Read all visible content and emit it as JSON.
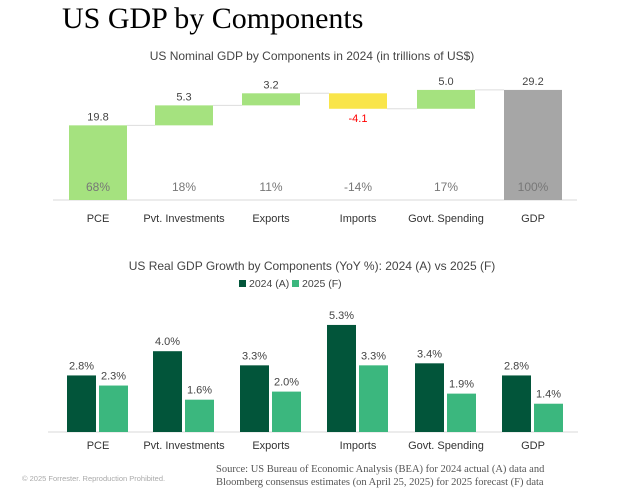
{
  "page_title": "US GDP by Components",
  "chart_data": [
    {
      "type": "waterfall",
      "title": "US Nominal GDP by Components in 2024 (in trillions of US$)",
      "categories": [
        "PCE",
        "Pvt. Investments",
        "Exports",
        "Imports",
        "Govt. Spending",
        "GDP"
      ],
      "values": [
        19.8,
        5.3,
        3.2,
        -4.1,
        5.0,
        29.2
      ],
      "value_labels": [
        "19.8",
        "5.3",
        "3.2",
        "-4.1",
        "5.0",
        "29.2"
      ],
      "share_labels": [
        "68%",
        "18%",
        "11%",
        "-14%",
        "17%",
        "100%"
      ],
      "colors": {
        "positive": "#a5e27f",
        "negative": "#f9e54a",
        "total": "#a6a6a6",
        "negative_label": "#ff0000"
      }
    },
    {
      "type": "bar",
      "title": "US Real GDP Growth by Components (YoY %): 2024 (A) vs 2025 (F)",
      "categories": [
        "PCE",
        "Pvt. Investments",
        "Exports",
        "Imports",
        "Govt. Spending",
        "GDP"
      ],
      "legend": "top",
      "series": [
        {
          "name": "2024 (A)",
          "color": "#02553a",
          "values": [
            2.8,
            4.0,
            3.3,
            5.3,
            3.4,
            2.8
          ],
          "labels": [
            "2.8%",
            "4.0%",
            "3.3%",
            "5.3%",
            "3.4%",
            "2.8%"
          ]
        },
        {
          "name": "2025 (F)",
          "color": "#3bb77e",
          "values": [
            2.3,
            1.6,
            2.0,
            3.3,
            1.9,
            1.4
          ],
          "labels": [
            "2.3%",
            "1.6%",
            "2.0%",
            "3.3%",
            "1.9%",
            "1.4%"
          ]
        }
      ]
    }
  ],
  "source": [
    "Source: US Bureau of Economic Analysis (BEA) for 2024 actual (A) data and",
    "Bloomberg consensus estimates (on April 25, 2025) for 2025 forecast (F) data"
  ],
  "copyright": "© 2025 Forrester. Reproduction Prohibited."
}
